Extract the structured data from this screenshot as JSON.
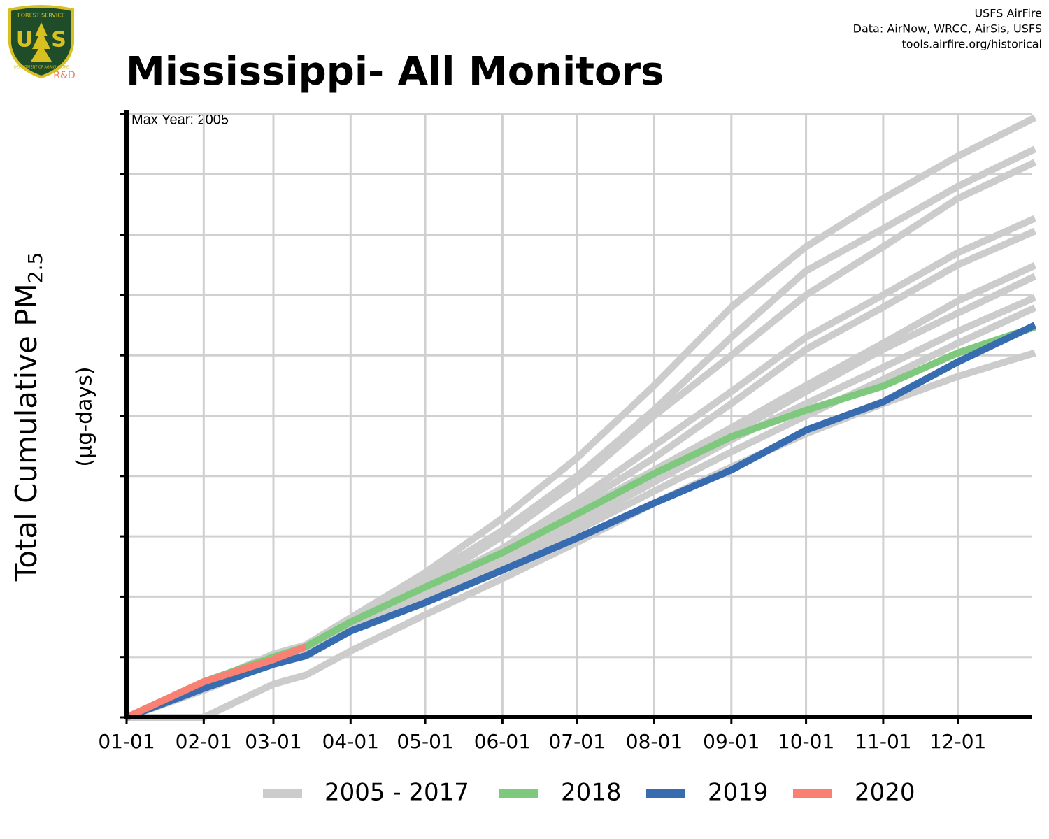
{
  "logo": {
    "top": "FOREST SERVICE",
    "left": "U",
    "right": "S",
    "bottom": "DEPARTMENT OF AGRICULTURE",
    "tag": "R&D"
  },
  "chart_data": {
    "type": "line",
    "title": "Mississippi- All Monitors",
    "credits": [
      "USFS AirFire",
      "Data: AirNow, WRCC, AirSis, USFS",
      "tools.airfire.org/historical"
    ],
    "annotation": "Max Year: 2005",
    "ylabel": {
      "text": "Total Cumulative PM",
      "subscript": "2.5"
    },
    "ylabel_unit": "(µg-days)",
    "x": [
      0,
      31,
      59,
      72,
      90,
      120,
      151,
      181,
      212,
      243,
      273,
      304,
      334,
      365
    ],
    "xlim": [
      0,
      365
    ],
    "xticks": [
      {
        "value": 0,
        "label": "01-01"
      },
      {
        "value": 31,
        "label": "02-01"
      },
      {
        "value": 59,
        "label": "03-01"
      },
      {
        "value": 90,
        "label": "04-01"
      },
      {
        "value": 120,
        "label": "05-01"
      },
      {
        "value": 151,
        "label": "06-01"
      },
      {
        "value": 181,
        "label": "07-01"
      },
      {
        "value": 212,
        "label": "08-01"
      },
      {
        "value": 243,
        "label": "09-01"
      },
      {
        "value": 273,
        "label": "10-01"
      },
      {
        "value": 304,
        "label": "11-01"
      },
      {
        "value": 334,
        "label": "12-01"
      }
    ],
    "ylim": [
      0,
      10
    ],
    "yticks": [
      0,
      1,
      2,
      3,
      4,
      5,
      6,
      7,
      8,
      9,
      10
    ],
    "ytick_labels_shown": false,
    "grid": true,
    "legend": "bottom",
    "series": [
      {
        "name": "2005 - 2017",
        "color": "#cccccc",
        "runs": [
          [
            0,
            0.55,
            1.05,
            1.2,
            1.65,
            2.4,
            3.3,
            4.3,
            5.5,
            6.8,
            7.8,
            8.6,
            9.3,
            9.94
          ],
          [
            0,
            0.5,
            1.0,
            1.15,
            1.6,
            2.3,
            3.1,
            4.0,
            5.1,
            6.3,
            7.4,
            8.1,
            8.8,
            9.42
          ],
          [
            0,
            0.5,
            0.95,
            1.1,
            1.55,
            2.2,
            3.0,
            3.9,
            5.0,
            6.0,
            7.0,
            7.8,
            8.6,
            9.2
          ],
          [
            0,
            0.5,
            0.95,
            1.1,
            1.5,
            2.1,
            2.8,
            3.6,
            4.5,
            5.4,
            6.3,
            7.0,
            7.7,
            8.27
          ],
          [
            0,
            0.55,
            1.0,
            1.15,
            1.55,
            2.15,
            2.8,
            3.5,
            4.3,
            5.2,
            6.1,
            6.8,
            7.5,
            8.06
          ],
          [
            0,
            0.5,
            0.95,
            1.1,
            1.5,
            2.05,
            2.7,
            3.4,
            4.1,
            4.8,
            5.5,
            6.2,
            6.9,
            7.49
          ],
          [
            0,
            0.55,
            1.0,
            1.15,
            1.55,
            2.1,
            2.7,
            3.3,
            4.0,
            4.7,
            5.4,
            6.1,
            6.7,
            7.31
          ],
          [
            0,
            0.5,
            0.95,
            1.1,
            1.5,
            2.0,
            2.6,
            3.2,
            3.9,
            4.6,
            5.2,
            5.8,
            6.4,
            6.96
          ],
          [
            0,
            0.45,
            0.9,
            1.05,
            1.45,
            2.0,
            2.55,
            3.1,
            3.75,
            4.4,
            5.0,
            5.6,
            6.2,
            6.79
          ],
          [
            0,
            0.0,
            0.55,
            0.7,
            1.1,
            1.7,
            2.3,
            2.9,
            3.55,
            4.15,
            4.7,
            5.2,
            5.65,
            6.04
          ]
        ]
      },
      {
        "name": "2018",
        "color": "#7fc97f",
        "values": [
          0,
          0.59,
          1.0,
          1.17,
          1.58,
          2.16,
          2.73,
          3.37,
          4.04,
          4.65,
          5.09,
          5.49,
          6.04,
          6.47
        ]
      },
      {
        "name": "2019",
        "color": "#386cb0",
        "values": [
          0,
          0.48,
          0.88,
          1.02,
          1.43,
          1.9,
          2.44,
          2.97,
          3.55,
          4.1,
          4.76,
          5.23,
          5.89,
          6.5
        ]
      },
      {
        "name": "2020",
        "color": "#f98072",
        "values": [
          0,
          0.59,
          0.96,
          1.17,
          null,
          null,
          null,
          null,
          null,
          null,
          null,
          null,
          null,
          null
        ]
      }
    ]
  }
}
